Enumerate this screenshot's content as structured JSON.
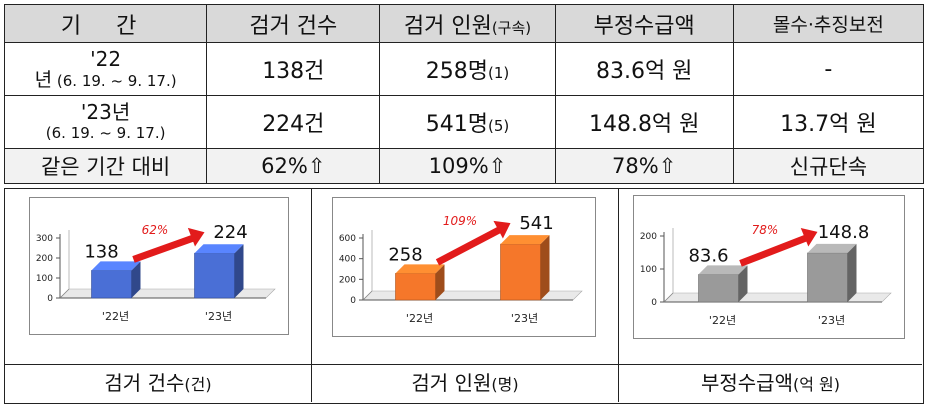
{
  "table": {
    "headers": [
      "기 간",
      "검거 건수",
      "검거 인원",
      "(구속)",
      "부정수급액",
      "몰수·추징보전"
    ],
    "rows": [
      {
        "period_year": "'22",
        "period_prefix": "년",
        "period_range": "(6. 19. ~ 9. 17.)",
        "count": "138건",
        "persons": "258명",
        "persons_arrested": "(1)",
        "amount": "83.6억 원",
        "recovery": "-"
      },
      {
        "period_year": "'23년",
        "period_range": "(6. 19. ~ 9. 17.)",
        "count": "224건",
        "persons": "541명",
        "persons_arrested": "(5)",
        "amount": "148.8억 원",
        "recovery": "13.7억 원"
      }
    ],
    "comparison": {
      "label": "같은 기간 대비",
      "count": "62%⇧",
      "persons": "109%⇧",
      "amount": "78%⇧",
      "recovery": "신규단속"
    }
  },
  "chart_data": [
    {
      "type": "bar",
      "categories": [
        "'22년",
        "'23년"
      ],
      "values": [
        138,
        224
      ],
      "value_labels": [
        "138",
        "224"
      ],
      "change_label": "62%",
      "ylim": [
        0,
        300
      ],
      "yticks": [
        0,
        100,
        200,
        300
      ],
      "color": "#4a6fd6",
      "caption": "검거 건수",
      "caption_unit": "(건)"
    },
    {
      "type": "bar",
      "categories": [
        "'22년",
        "'23년"
      ],
      "values": [
        258,
        541
      ],
      "value_labels": [
        "258",
        "541"
      ],
      "change_label": "109%",
      "ylim": [
        0,
        600
      ],
      "yticks": [
        0,
        200,
        400,
        600
      ],
      "color": "#f5772a",
      "caption": "검거 인원",
      "caption_unit": "(명)"
    },
    {
      "type": "bar",
      "categories": [
        "'22년",
        "'23년"
      ],
      "values": [
        83.6,
        148.8
      ],
      "value_labels": [
        "83.6",
        "148.8"
      ],
      "change_label": "78%",
      "ylim": [
        0,
        200
      ],
      "yticks": [
        0,
        100,
        200
      ],
      "color": "#9a9a9a",
      "caption": "부정수급액",
      "caption_unit": "(억 원)"
    }
  ]
}
